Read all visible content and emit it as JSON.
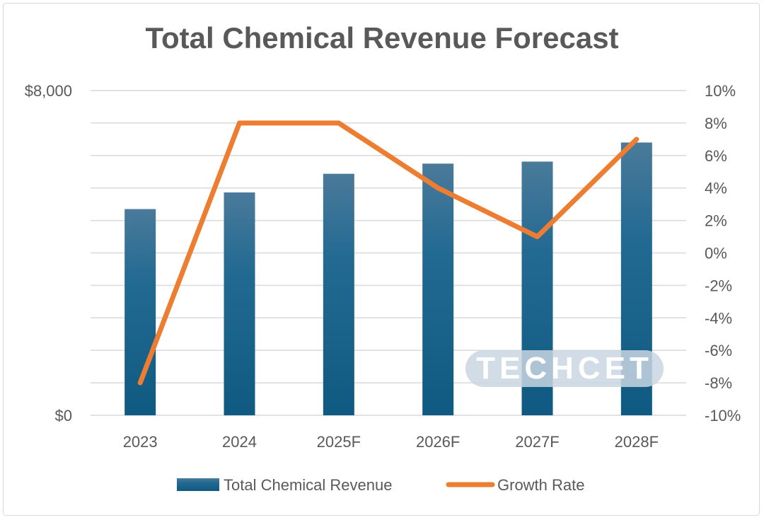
{
  "chart_data": {
    "type": "bar",
    "title": "Total Chemical Revenue Forecast",
    "categories": [
      "2023",
      "2024",
      "2025F",
      "2026F",
      "2027F",
      "2028F"
    ],
    "series": [
      {
        "name": "Total Chemical Revenue",
        "type": "bar",
        "axis": "left",
        "color": "#1f5f86",
        "values": [
          5080,
          5490,
          5950,
          6200,
          6250,
          6720
        ]
      },
      {
        "name": "Growth Rate",
        "type": "line",
        "axis": "right",
        "color": "#ed7d31",
        "values": [
          -8,
          8,
          8,
          4,
          1,
          7
        ]
      }
    ],
    "y_left": {
      "min": 0,
      "max": 8000,
      "tick_labels": [
        "$0",
        "$8,000"
      ]
    },
    "y_right": {
      "min": -10,
      "max": 10,
      "tick_labels": [
        "10%",
        "8%",
        "6%",
        "4%",
        "2%",
        "0%",
        "-2%",
        "-4%",
        "-6%",
        "-8%",
        "-10%"
      ]
    },
    "grid": true,
    "legend_position": "bottom",
    "watermark": "TECHCET"
  }
}
